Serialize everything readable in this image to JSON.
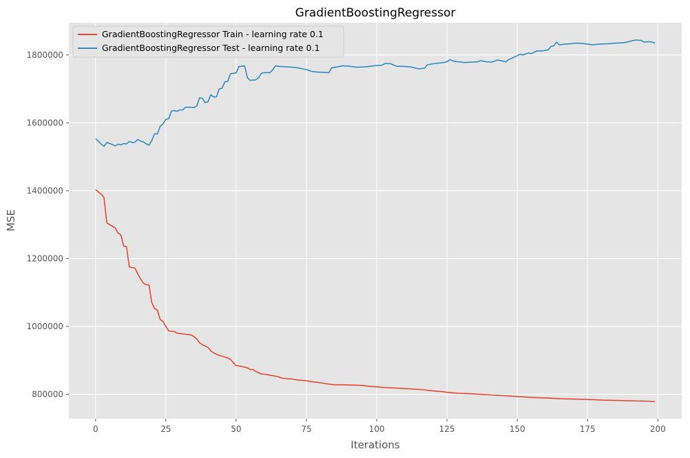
{
  "chart_data": {
    "type": "line",
    "title": "GradientBoostingRegressor",
    "xlabel": "Iterations",
    "ylabel": "MSE",
    "xlim": [
      -9.5,
      208.5
    ],
    "ylim": [
      728000,
      1895000
    ],
    "xticks": [
      0,
      25,
      50,
      75,
      100,
      125,
      150,
      175,
      200
    ],
    "yticks": [
      800000,
      1000000,
      1200000,
      1400000,
      1600000,
      1800000
    ],
    "xtick_labels": [
      "0",
      "25",
      "50",
      "75",
      "100",
      "125",
      "150",
      "175",
      "200"
    ],
    "ytick_labels": [
      "800000",
      "1000000",
      "1200000",
      "1400000",
      "1600000",
      "1800000"
    ],
    "grid": true,
    "legend_position": "upper-left",
    "series": [
      {
        "name": "GradientBoostingRegressor Train - learning rate 0.1",
        "color": "#E24A33",
        "points": [
          [
            0,
            1403000
          ],
          [
            2,
            1390000
          ],
          [
            3,
            1380000
          ],
          [
            4,
            1305000
          ],
          [
            6,
            1295000
          ],
          [
            7,
            1290000
          ],
          [
            8,
            1275000
          ],
          [
            9,
            1270000
          ],
          [
            10,
            1237000
          ],
          [
            11,
            1235000
          ],
          [
            12,
            1175000
          ],
          [
            14,
            1172000
          ],
          [
            15,
            1155000
          ],
          [
            16,
            1140000
          ],
          [
            17,
            1128000
          ],
          [
            18,
            1123000
          ],
          [
            19,
            1122000
          ],
          [
            20,
            1070000
          ],
          [
            21,
            1053000
          ],
          [
            22,
            1048000
          ],
          [
            23,
            1020000
          ],
          [
            24,
            1015000
          ],
          [
            25,
            1000000
          ],
          [
            26,
            987000
          ],
          [
            28,
            985000
          ],
          [
            29,
            980000
          ],
          [
            31,
            978000
          ],
          [
            33,
            976000
          ],
          [
            34,
            975000
          ],
          [
            35,
            970000
          ],
          [
            36,
            963000
          ],
          [
            37,
            952000
          ],
          [
            38,
            946000
          ],
          [
            40,
            938000
          ],
          [
            41,
            928000
          ],
          [
            42,
            922000
          ],
          [
            43,
            918000
          ],
          [
            44,
            915000
          ],
          [
            46,
            910000
          ],
          [
            47,
            907000
          ],
          [
            48,
            903000
          ],
          [
            49,
            893000
          ],
          [
            50,
            885000
          ],
          [
            52,
            882000
          ],
          [
            54,
            878000
          ],
          [
            55,
            873000
          ],
          [
            56,
            873000
          ],
          [
            57,
            867000
          ],
          [
            59,
            860000
          ],
          [
            61,
            858000
          ],
          [
            63,
            855000
          ],
          [
            65,
            852000
          ],
          [
            66,
            848000
          ],
          [
            68,
            846000
          ],
          [
            70,
            845000
          ],
          [
            72,
            842000
          ],
          [
            75,
            840000
          ],
          [
            77,
            837000
          ],
          [
            80,
            834000
          ],
          [
            83,
            830000
          ],
          [
            85,
            828000
          ],
          [
            88,
            828000
          ],
          [
            92,
            827000
          ],
          [
            95,
            826000
          ],
          [
            98,
            823000
          ],
          [
            100,
            822000
          ],
          [
            103,
            820000
          ],
          [
            108,
            818000
          ],
          [
            112,
            816000
          ],
          [
            116,
            814000
          ],
          [
            118,
            812000
          ],
          [
            120,
            810000
          ],
          [
            123,
            808000
          ],
          [
            126,
            805000
          ],
          [
            129,
            803000
          ],
          [
            133,
            802000
          ],
          [
            137,
            800000
          ],
          [
            141,
            798000
          ],
          [
            145,
            796000
          ],
          [
            149,
            794000
          ],
          [
            153,
            792000
          ],
          [
            157,
            790000
          ],
          [
            161,
            789000
          ],
          [
            165,
            787000
          ],
          [
            170,
            786000
          ],
          [
            175,
            785000
          ],
          [
            180,
            783000
          ],
          [
            185,
            782000
          ],
          [
            190,
            781000
          ],
          [
            195,
            780000
          ],
          [
            199,
            779000
          ]
        ]
      },
      {
        "name": "GradientBoostingRegressor Test - learning rate 0.1",
        "color": "#348ABD",
        "points": [
          [
            0,
            1553000
          ],
          [
            1,
            1546000
          ],
          [
            2,
            1537000
          ],
          [
            3,
            1531000
          ],
          [
            4,
            1542000
          ],
          [
            5,
            1539000
          ],
          [
            6,
            1536000
          ],
          [
            7,
            1532000
          ],
          [
            8,
            1537000
          ],
          [
            9,
            1535000
          ],
          [
            10,
            1539000
          ],
          [
            11,
            1538000
          ],
          [
            12,
            1545000
          ],
          [
            13,
            1542000
          ],
          [
            14,
            1543000
          ],
          [
            15,
            1551000
          ],
          [
            16,
            1546000
          ],
          [
            17,
            1544000
          ],
          [
            18,
            1538000
          ],
          [
            19,
            1534000
          ],
          [
            20,
            1548000
          ],
          [
            21,
            1568000
          ],
          [
            22,
            1567000
          ],
          [
            23,
            1590000
          ],
          [
            24,
            1597000
          ],
          [
            25,
            1610000
          ],
          [
            26,
            1612000
          ],
          [
            27,
            1635000
          ],
          [
            28,
            1636000
          ],
          [
            29,
            1634000
          ],
          [
            30,
            1638000
          ],
          [
            31,
            1638000
          ],
          [
            32,
            1646000
          ],
          [
            34,
            1646000
          ],
          [
            35,
            1645000
          ],
          [
            36,
            1650000
          ],
          [
            37,
            1674000
          ],
          [
            38,
            1672000
          ],
          [
            39,
            1660000
          ],
          [
            40,
            1662000
          ],
          [
            41,
            1683000
          ],
          [
            42,
            1676000
          ],
          [
            43,
            1677000
          ],
          [
            44,
            1700000
          ],
          [
            45,
            1702000
          ],
          [
            46,
            1721000
          ],
          [
            47,
            1722000
          ],
          [
            48,
            1745000
          ],
          [
            49,
            1746000
          ],
          [
            50,
            1747000
          ],
          [
            51,
            1766000
          ],
          [
            53,
            1768000
          ],
          [
            54,
            1733000
          ],
          [
            55,
            1725000
          ],
          [
            57,
            1727000
          ],
          [
            58,
            1733000
          ],
          [
            59,
            1746000
          ],
          [
            60,
            1748000
          ],
          [
            62,
            1748000
          ],
          [
            63,
            1756000
          ],
          [
            64,
            1768000
          ],
          [
            66,
            1766000
          ],
          [
            68,
            1765000
          ],
          [
            70,
            1764000
          ],
          [
            72,
            1762000
          ],
          [
            75,
            1757000
          ],
          [
            77,
            1751000
          ],
          [
            80,
            1749000
          ],
          [
            83,
            1748000
          ],
          [
            84,
            1762000
          ],
          [
            86,
            1765000
          ],
          [
            88,
            1768000
          ],
          [
            90,
            1767000
          ],
          [
            93,
            1764000
          ],
          [
            96,
            1765000
          ],
          [
            99,
            1768000
          ],
          [
            102,
            1770000
          ],
          [
            103,
            1775000
          ],
          [
            105,
            1774000
          ],
          [
            107,
            1767000
          ],
          [
            110,
            1766000
          ],
          [
            112,
            1765000
          ],
          [
            115,
            1759000
          ],
          [
            117,
            1761000
          ],
          [
            118,
            1771000
          ],
          [
            120,
            1774000
          ],
          [
            122,
            1776000
          ],
          [
            124,
            1778000
          ],
          [
            125,
            1780000
          ],
          [
            126,
            1786000
          ],
          [
            127,
            1783000
          ],
          [
            128,
            1781000
          ],
          [
            131,
            1778000
          ],
          [
            134,
            1779000
          ],
          [
            136,
            1780000
          ],
          [
            137,
            1783000
          ],
          [
            139,
            1780000
          ],
          [
            141,
            1779000
          ],
          [
            143,
            1785000
          ],
          [
            146,
            1780000
          ],
          [
            147,
            1787000
          ],
          [
            148,
            1790000
          ],
          [
            150,
            1798000
          ],
          [
            151,
            1802000
          ],
          [
            152,
            1800000
          ],
          [
            154,
            1806000
          ],
          [
            155,
            1804000
          ],
          [
            157,
            1812000
          ],
          [
            159,
            1812000
          ],
          [
            161,
            1815000
          ],
          [
            162,
            1825000
          ],
          [
            163,
            1827000
          ],
          [
            164,
            1838000
          ],
          [
            165,
            1830000
          ],
          [
            167,
            1832000
          ],
          [
            169,
            1833000
          ],
          [
            171,
            1835000
          ],
          [
            173,
            1834000
          ],
          [
            175,
            1832000
          ],
          [
            177,
            1830000
          ],
          [
            179,
            1832000
          ],
          [
            182,
            1833000
          ],
          [
            185,
            1835000
          ],
          [
            188,
            1836000
          ],
          [
            190,
            1840000
          ],
          [
            192,
            1844000
          ],
          [
            194,
            1843000
          ],
          [
            195,
            1838000
          ],
          [
            197,
            1839000
          ],
          [
            198,
            1838000
          ],
          [
            199,
            1835000
          ]
        ]
      }
    ]
  }
}
